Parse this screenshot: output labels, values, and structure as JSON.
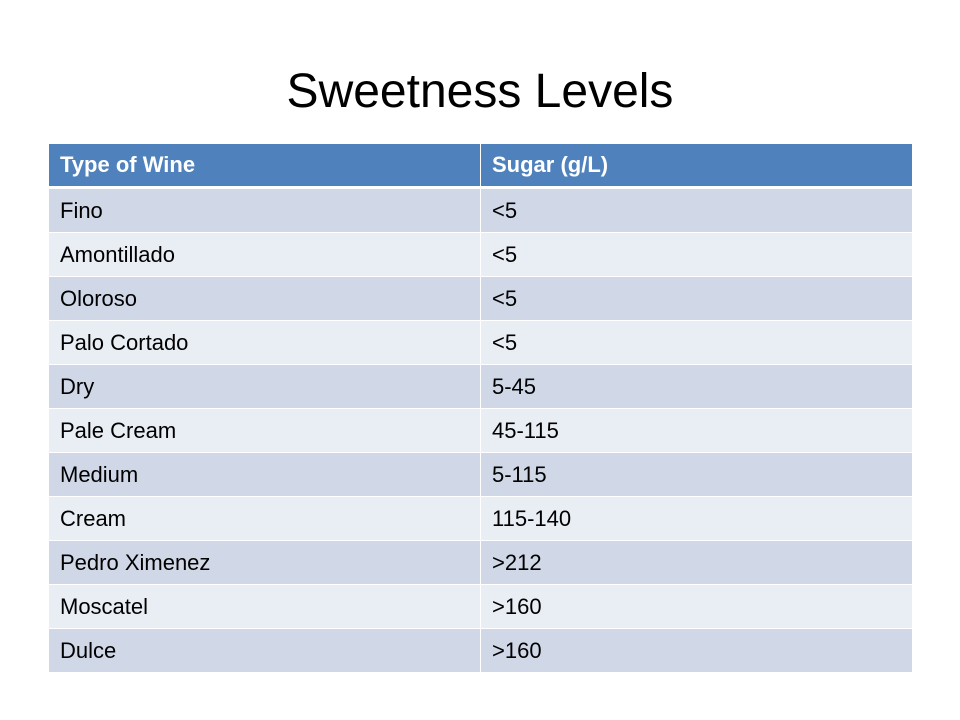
{
  "slide": {
    "title": "Sweetness Levels"
  },
  "table": {
    "headers": [
      "Type of Wine",
      "Sugar (g/L)"
    ],
    "rows": [
      [
        "Fino",
        "<5"
      ],
      [
        "Amontillado",
        "<5"
      ],
      [
        "Oloroso",
        "<5"
      ],
      [
        "Palo Cortado",
        "<5"
      ],
      [
        "Dry",
        "5-45"
      ],
      [
        "Pale Cream",
        "45-115"
      ],
      [
        "Medium",
        "5-115"
      ],
      [
        "Cream",
        "115-140"
      ],
      [
        "Pedro Ximenez",
        ">212"
      ],
      [
        "Moscatel",
        ">160"
      ],
      [
        "Dulce",
        ">160"
      ]
    ]
  },
  "colors": {
    "header_bg": "#4f81bd",
    "row_odd_bg": "#d0d8e8",
    "row_even_bg": "#e9edf4"
  }
}
